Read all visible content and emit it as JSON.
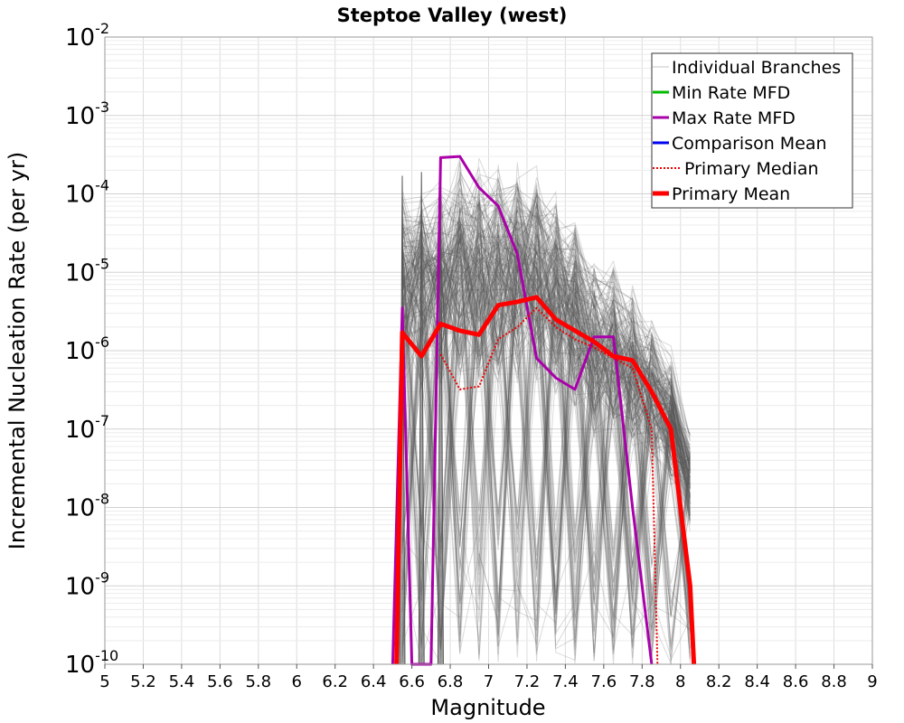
{
  "chart_data": {
    "type": "line",
    "title": "Steptoe Valley (west)",
    "xlabel": "Magnitude",
    "ylabel": "Incremental Nucleation Rate (per yr)",
    "xlim": [
      5,
      9
    ],
    "ylim": [
      1e-10,
      0.01
    ],
    "y_scale": "log",
    "grid": true,
    "legend_position": "top-right",
    "x_ticks": [
      "5",
      "5.2",
      "5.4",
      "5.6",
      "5.8",
      "6",
      "6.2",
      "6.4",
      "6.6",
      "6.8",
      "7",
      "7.2",
      "7.4",
      "7.6",
      "7.8",
      "8",
      "8.2",
      "8.4",
      "8.6",
      "8.8",
      "9"
    ],
    "y_ticks": [
      {
        "base": "10",
        "exp": "-10",
        "value": 1e-10
      },
      {
        "base": "10",
        "exp": "-9",
        "value": 1e-09
      },
      {
        "base": "10",
        "exp": "-8",
        "value": 1e-08
      },
      {
        "base": "10",
        "exp": "-7",
        "value": 1e-07
      },
      {
        "base": "10",
        "exp": "-6",
        "value": 1e-06
      },
      {
        "base": "10",
        "exp": "-5",
        "value": 1e-05
      },
      {
        "base": "10",
        "exp": "-4",
        "value": 0.0001
      },
      {
        "base": "10",
        "exp": "-3",
        "value": 0.001
      },
      {
        "base": "10",
        "exp": "-2",
        "value": 0.01
      }
    ],
    "series": [
      {
        "name": "Individual Branches",
        "color": "#555555",
        "style": "thin",
        "x": [
          6.55,
          6.65,
          6.75,
          6.85,
          6.95,
          7.05,
          7.15,
          7.25,
          7.35,
          7.45,
          7.55,
          7.65,
          7.75,
          7.85,
          7.95,
          8.05
        ],
        "band_upper": [
          0.00017,
          0.00019,
          0.0002,
          0.00035,
          0.00035,
          0.00033,
          0.00032,
          0.00025,
          0.00015,
          6e-05,
          1.8e-05,
          1.5e-05,
          8e-06,
          3e-06,
          1.2e-06,
          1.2e-07
        ],
        "band_lower": [
          1e-10,
          1e-10,
          1e-10,
          1e-10,
          1e-10,
          1e-10,
          1e-10,
          1e-10,
          1e-10,
          1e-10,
          1e-10,
          1e-10,
          1e-10,
          1e-10,
          1e-10,
          1e-10
        ]
      },
      {
        "name": "Min Rate MFD",
        "color": "#00bb00",
        "x": [],
        "y": []
      },
      {
        "name": "Max Rate MFD",
        "color": "#aa00aa",
        "x": [
          6.5,
          6.55,
          6.6,
          6.7,
          6.75,
          6.85,
          6.95,
          7.05,
          7.15,
          7.25,
          7.35,
          7.45,
          7.55,
          7.65,
          7.75,
          7.85
        ],
        "y": [
          1e-10,
          3.5e-06,
          1e-10,
          1e-10,
          0.00029,
          0.0003,
          0.00012,
          7e-05,
          1.7e-05,
          8e-07,
          4.5e-07,
          3.2e-07,
          1.5e-06,
          1.5e-06,
          1e-08,
          1e-10
        ]
      },
      {
        "name": "Comparison Mean",
        "color": "#0000ee",
        "x": [],
        "y": []
      },
      {
        "name": "Primary Median",
        "color": "#ee0000",
        "style": "dotted",
        "x": [
          6.75,
          6.85,
          6.95,
          7.05,
          7.15,
          7.25,
          7.35,
          7.45,
          7.55,
          7.65,
          7.75,
          7.85,
          7.88
        ],
        "y": [
          9e-07,
          3.2e-07,
          3.5e-07,
          1.4e-06,
          2e-06,
          3.5e-06,
          2e-06,
          1.4e-06,
          1.1e-06,
          8e-07,
          6e-07,
          1e-07,
          1e-10
        ]
      },
      {
        "name": "Primary Mean",
        "color": "#ff0000",
        "style": "thick",
        "x": [
          6.52,
          6.55,
          6.65,
          6.75,
          6.85,
          6.95,
          7.05,
          7.15,
          7.25,
          7.35,
          7.45,
          7.55,
          7.65,
          7.75,
          7.85,
          7.95,
          8.05,
          8.07
        ],
        "y": [
          1e-10,
          1.7e-06,
          8.5e-07,
          2.2e-06,
          1.8e-06,
          1.6e-06,
          3.8e-06,
          4.2e-06,
          4.8e-06,
          2.5e-06,
          1.8e-06,
          1.3e-06,
          8.5e-07,
          7.5e-07,
          3e-07,
          1e-07,
          1e-09,
          1e-10
        ]
      }
    ]
  }
}
